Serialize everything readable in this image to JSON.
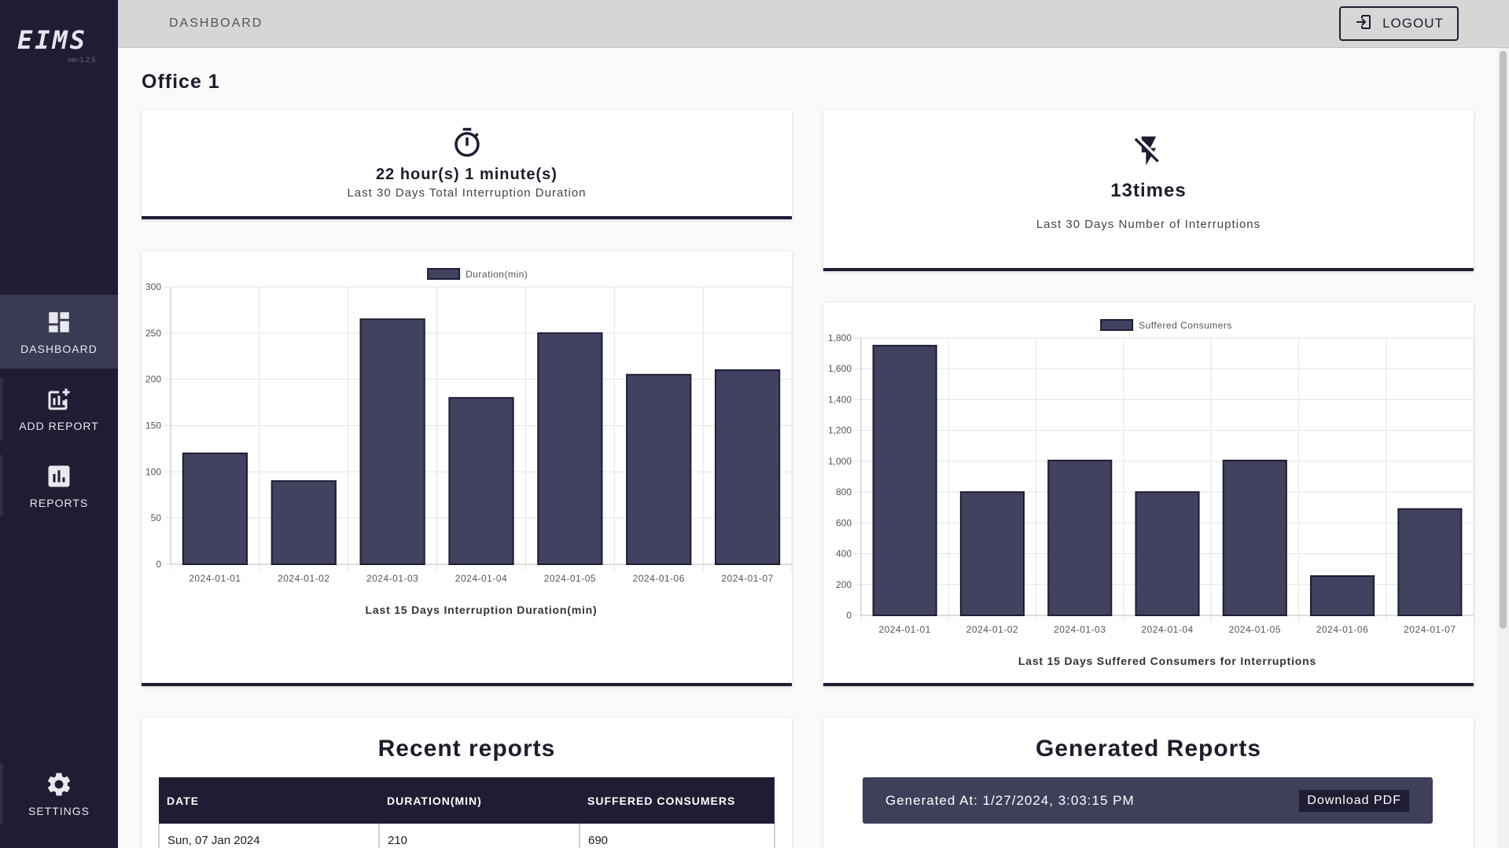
{
  "app": {
    "logo": "EIMS",
    "version": "ver-1.2.5"
  },
  "sidebar": {
    "items": [
      {
        "label": "DASHBOARD",
        "icon": "dashboard-icon"
      },
      {
        "label": "ADD REPORT",
        "icon": "add-chart-icon"
      },
      {
        "label": "REPORTS",
        "icon": "bar-chart-icon"
      },
      {
        "label": "SETTINGS",
        "icon": "gear-icon"
      }
    ]
  },
  "header": {
    "breadcrumb": "DASHBOARD",
    "logout_label": "LOGOUT"
  },
  "page": {
    "title": "Office 1"
  },
  "stats": {
    "duration": {
      "value": "22 hour(s) 1 minute(s)",
      "label": "Last 30 Days Total Interruption Duration",
      "icon": "timer-icon"
    },
    "count": {
      "value": "13times",
      "label": "Last 30 Days Number of Interruptions",
      "icon": "flash-off-icon"
    }
  },
  "chart_data": [
    {
      "type": "bar",
      "title": "Last 15 Days Interruption Duration(min)",
      "categories": [
        "2024-01-01",
        "2024-01-02",
        "2024-01-03",
        "2024-01-04",
        "2024-01-05",
        "2024-01-06",
        "2024-01-07"
      ],
      "series": [
        {
          "name": "Duration(min)",
          "values": [
            120,
            90,
            265,
            180,
            250,
            205,
            210
          ]
        }
      ],
      "ylim": [
        0,
        300
      ],
      "yticks": [
        "0",
        "50",
        "100",
        "150",
        "200",
        "250",
        "300"
      ],
      "grid": true,
      "legend": "top-center",
      "color": "#414260"
    },
    {
      "type": "bar",
      "title": "Last 15 Days Suffered Consumers for Interruptions",
      "categories": [
        "2024-01-01",
        "2024-01-02",
        "2024-01-03",
        "2024-01-04",
        "2024-01-05",
        "2024-01-06",
        "2024-01-07"
      ],
      "series": [
        {
          "name": "Suffered Consumers",
          "values": [
            1750,
            800,
            1005,
            800,
            1005,
            255,
            690
          ]
        }
      ],
      "ylim": [
        0,
        1800
      ],
      "yticks": [
        "0",
        "200",
        "400",
        "600",
        "800",
        "1,000",
        "1,200",
        "1,400",
        "1,600",
        "1,800"
      ],
      "grid": true,
      "legend": "top-center",
      "color": "#414260"
    }
  ],
  "recent_reports": {
    "title": "Recent reports",
    "columns": [
      "DATE",
      "DURATION(MIN)",
      "SUFFERED CONSUMERS"
    ],
    "rows": [
      [
        "Sun, 07 Jan 2024",
        "210",
        "690"
      ]
    ]
  },
  "generated_reports": {
    "title": "Generated Reports",
    "entry": "Generated At: 1/27/2024, 3:03:15 PM",
    "download_label": "Download PDF"
  },
  "colors": {
    "sidebar": "#1e1d33",
    "accent": "#414260",
    "header": "#d6d6d6"
  }
}
